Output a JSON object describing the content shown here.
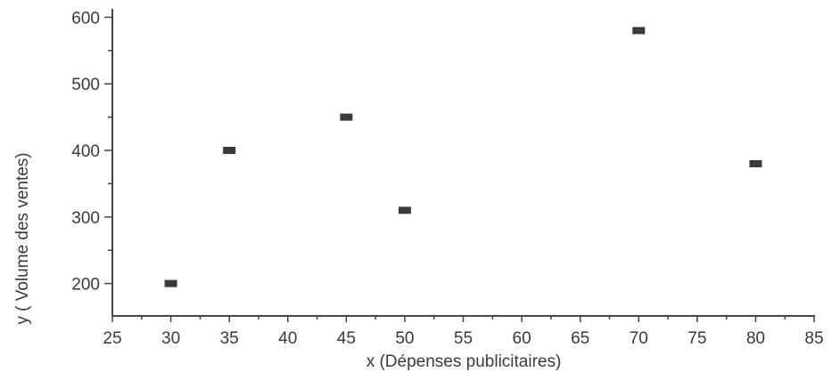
{
  "chart_data": {
    "type": "scatter",
    "title": "",
    "xlabel": "x (Dépenses publicitaires)",
    "ylabel": "y ( Volume des ventes)",
    "xlim": [
      25,
      85
    ],
    "ylim": [
      150,
      650
    ],
    "x_ticks": [
      25,
      30,
      35,
      40,
      45,
      50,
      55,
      60,
      65,
      70,
      75,
      80,
      85
    ],
    "x_tick_labels": [
      "25",
      "30",
      "35",
      "40",
      "45",
      "50",
      "55",
      "60",
      "65",
      "70",
      "75",
      "80",
      "85"
    ],
    "y_ticks": [
      200,
      300,
      400,
      500,
      600
    ],
    "y_tick_labels": [
      "200",
      "300",
      "400",
      "500",
      "600"
    ],
    "grid": false,
    "legend": "none",
    "marker": "square",
    "colors": {
      "axis": "#444444",
      "marker": "#3a3a3a",
      "text": "#3a3a3a"
    },
    "series": [
      {
        "points": [
          {
            "x": 30,
            "y": 200
          },
          {
            "x": 35,
            "y": 400
          },
          {
            "x": 45,
            "y": 450
          },
          {
            "x": 50,
            "y": 310
          },
          {
            "x": 70,
            "y": 580
          },
          {
            "x": 80,
            "y": 380
          }
        ]
      }
    ]
  }
}
